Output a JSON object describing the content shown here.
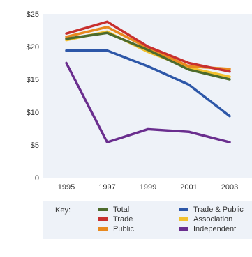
{
  "chart_data": {
    "type": "line",
    "x": [
      "1995",
      "1997",
      "1999",
      "2001",
      "2003"
    ],
    "yticks": [
      "0",
      "$5",
      "$10",
      "$15",
      "$20",
      "$25"
    ],
    "ylim": [
      0,
      25
    ],
    "grid": false,
    "legend_position": "bottom",
    "legend_title": "Key:",
    "series": [
      {
        "name": "Total",
        "color": "#4d6b2c",
        "values": [
          21.2,
          22.1,
          19.5,
          16.5,
          15.0
        ]
      },
      {
        "name": "Trade",
        "color": "#c8302e",
        "values": [
          22.0,
          23.8,
          20.0,
          17.5,
          16.2
        ]
      },
      {
        "name": "Public",
        "color": "#e8891f",
        "values": [
          21.5,
          23.0,
          19.8,
          17.0,
          16.6
        ]
      },
      {
        "name": "Trade & Public",
        "color": "#2d57a8",
        "values": [
          19.4,
          19.4,
          17.0,
          14.2,
          9.4
        ]
      },
      {
        "name": "Association",
        "color": "#f2c12e",
        "values": [
          21.0,
          22.3,
          19.2,
          16.8,
          15.4
        ]
      },
      {
        "name": "Independent",
        "color": "#6a2e8e",
        "values": [
          17.5,
          5.4,
          7.4,
          7.0,
          5.4
        ]
      }
    ]
  }
}
